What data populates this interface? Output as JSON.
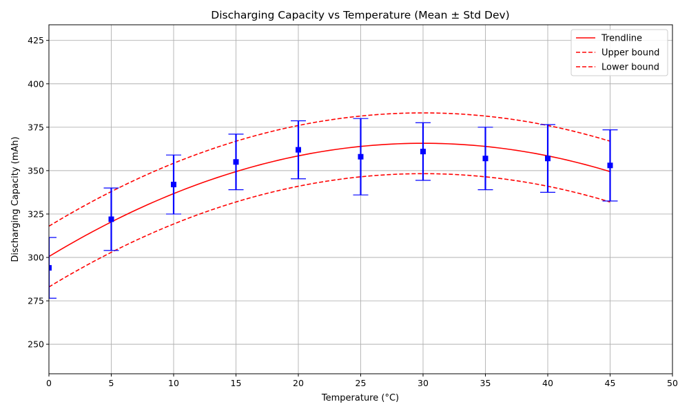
{
  "chart_data": {
    "type": "line",
    "title": "Discharging Capacity vs Temperature (Mean ± Std Dev)",
    "xlabel": "Temperature (°C)",
    "ylabel": "Discharging Capacity (mAh)",
    "xlim": [
      0,
      50
    ],
    "ylim": [
      233,
      434
    ],
    "xticks": [
      0,
      5,
      10,
      15,
      20,
      25,
      30,
      35,
      40,
      45,
      50
    ],
    "yticks": [
      250,
      275,
      300,
      325,
      350,
      375,
      400,
      425
    ],
    "grid": true,
    "legend_position": "top-right",
    "x": [
      0,
      5,
      10,
      15,
      20,
      25,
      30,
      35,
      40,
      45
    ],
    "series": [
      {
        "name": "",
        "kind": "errorbar",
        "color": "#0000ff",
        "marker": "square",
        "values": [
          294,
          322,
          342,
          355,
          362,
          358,
          361,
          357,
          357,
          353
        ],
        "std": [
          17.5,
          18,
          17,
          16,
          16.7,
          22,
          16.6,
          18,
          19.5,
          20.5
        ]
      },
      {
        "name": "Trendline",
        "kind": "line",
        "style": "solid",
        "color": "#ff0000",
        "polynomial": [
          300.5,
          4.35,
          -0.0725
        ],
        "x_range": [
          0,
          45
        ]
      },
      {
        "name": "Upper bound",
        "kind": "line",
        "style": "dashed",
        "color": "#ff0000",
        "polynomial": [
          318,
          4.35,
          -0.0725
        ],
        "x_range": [
          0,
          45
        ]
      },
      {
        "name": "Lower bound",
        "kind": "line",
        "style": "dashed",
        "color": "#ff0000",
        "polynomial": [
          283,
          4.35,
          -0.0725
        ],
        "x_range": [
          0,
          45
        ]
      }
    ]
  }
}
